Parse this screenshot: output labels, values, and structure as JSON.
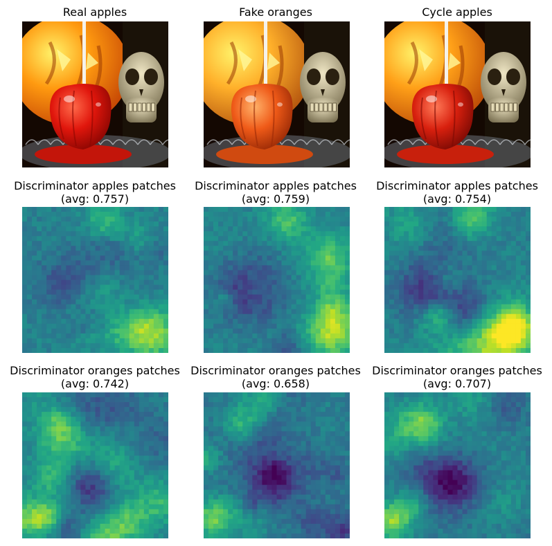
{
  "rows": [
    {
      "kind": "photo",
      "panels": [
        {
          "title": "Real apples",
          "subtitle": "",
          "variant": "real"
        },
        {
          "title": "Fake oranges",
          "subtitle": "",
          "variant": "fake"
        },
        {
          "title": "Cycle apples",
          "subtitle": "",
          "variant": "cycle"
        }
      ]
    },
    {
      "kind": "heatmap",
      "panels": [
        {
          "title": "Discriminator apples patches",
          "subtitle": "(avg: 0.757)",
          "avg": 0.757,
          "seed": 11,
          "bias": "corner-bottom-right"
        },
        {
          "title": "Discriminator apples patches",
          "subtitle": "(avg: 0.759)",
          "avg": 0.759,
          "seed": 23,
          "bias": "corner-bottom-right"
        },
        {
          "title": "Discriminator apples patches",
          "subtitle": "(avg: 0.754)",
          "avg": 0.754,
          "seed": 37,
          "bias": "corner-bottom-right"
        }
      ]
    },
    {
      "kind": "heatmap",
      "panels": [
        {
          "title": "Discriminator oranges patches",
          "subtitle": "(avg: 0.742)",
          "avg": 0.742,
          "seed": 51,
          "bias": "left-edge"
        },
        {
          "title": "Discriminator oranges patches",
          "subtitle": "(avg: 0.658)",
          "avg": 0.658,
          "seed": 67,
          "bias": "left-edge"
        },
        {
          "title": "Discriminator oranges patches",
          "subtitle": "(avg: 0.707)",
          "avg": 0.707,
          "seed": 79,
          "bias": "left-edge"
        }
      ]
    }
  ],
  "colormap": "viridis",
  "grid_size": 30
}
